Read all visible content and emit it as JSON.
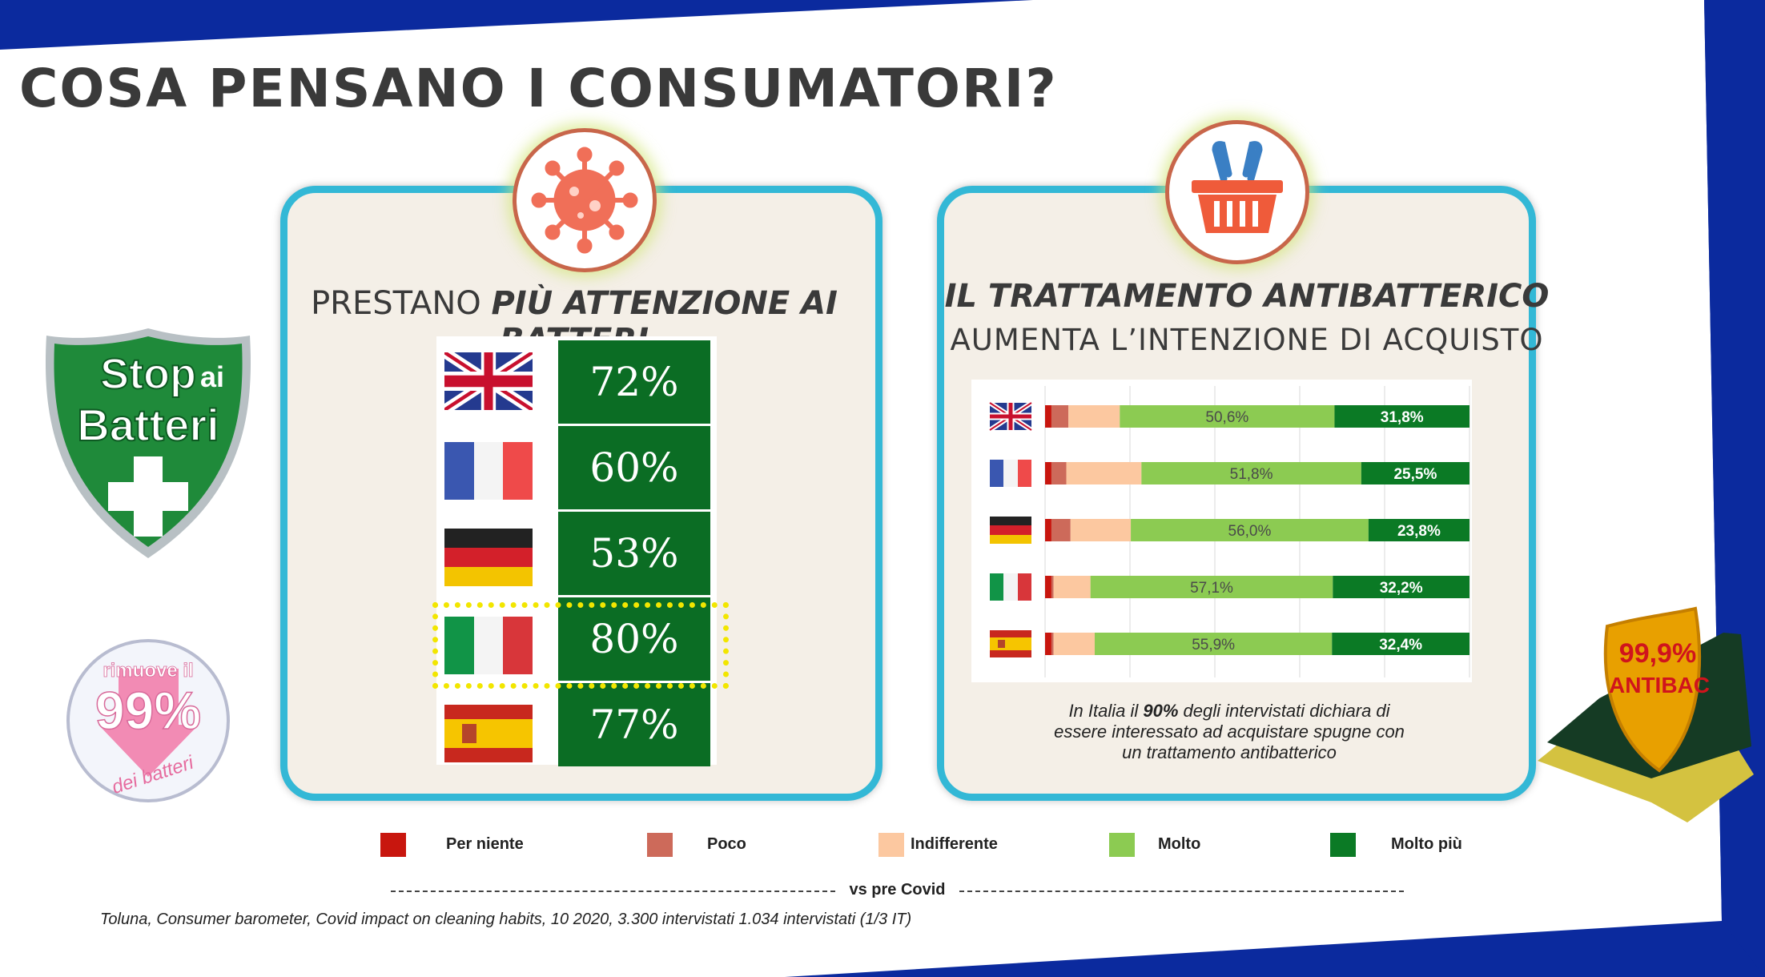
{
  "slide": {
    "title": "COSA PENSANO I CONSUMATORI?",
    "colors": {
      "frame": "#0b2a9e",
      "panel_border": "#33b8d6",
      "panel_bg": "#f4efe7",
      "dark_green": "#0b6d24"
    }
  },
  "badges": {
    "stop_line1": "Stop",
    "stop_line2": "ai",
    "stop_line3": "Batteri",
    "rimuove_line1": "rimuove il",
    "rimuove_line2": "99%",
    "rimuove_line3": "dei batteri",
    "antibac_line1": "99,9%",
    "antibac_line2": "ANTIBAC"
  },
  "left_panel": {
    "title_plain": "PRESTANO ",
    "title_italic": "PIÙ ATTENZIONE AI BATTERI",
    "icon": "virus-icon",
    "highlight_country": "Italia"
  },
  "right_panel": {
    "title_line1": "IL TRATTAMENTO ANTIBATTERICO",
    "title_line2": "AUMENTA L’INTENZIONE DI ACQUISTO",
    "icon": "shopping-basket-icon",
    "note_pre": "In Italia il ",
    "note_bold": "90%",
    "note_post": " degli intervistati dichiara di",
    "note_line2": "essere interessato ad acquistare spugne con",
    "note_line3": "un trattamento antibatterico"
  },
  "legend": {
    "items": [
      {
        "label": "Per niente",
        "color": "#c8160e"
      },
      {
        "label": "Poco",
        "color": "#cd6a5a"
      },
      {
        "label": "Indifferente",
        "color": "#fcc8a0"
      },
      {
        "label": "Molto",
        "color": "#8ccb52"
      },
      {
        "label": "Molto più",
        "color": "#0b7a25"
      }
    ]
  },
  "footer": {
    "divider_text": "vs pre Covid",
    "source": "Toluna, Consumer barometer, Covid impact on cleaning habits, 10 2020, 3.300 intervistati  1.034 intervistati (1/3 IT)"
  },
  "chart_data": [
    {
      "type": "table",
      "title": "PRESTANO PIÙ ATTENZIONE AI BATTERI",
      "categories": [
        "Regno Unito",
        "Francia",
        "Germania",
        "Italia",
        "Spagna"
      ],
      "values": [
        72,
        60,
        53,
        80,
        77
      ],
      "labels": [
        "72%",
        "60%",
        "53%",
        "80%",
        "77%"
      ]
    },
    {
      "type": "bar",
      "orientation": "horizontal",
      "stacked": true,
      "title": "IL TRATTAMENTO ANTIBATTERICO AUMENTA L’INTENZIONE DI ACQUISTO",
      "categories": [
        "Regno Unito",
        "Francia",
        "Germania",
        "Italia",
        "Spagna"
      ],
      "xlim": [
        0,
        100
      ],
      "grid": true,
      "series": [
        {
          "name": "Per niente",
          "color": "#c8160e",
          "values": [
            1.5,
            1.5,
            1.5,
            1.5,
            1.5
          ]
        },
        {
          "name": "Poco",
          "color": "#cd6a5a",
          "values": [
            4.0,
            3.5,
            4.5,
            0.5,
            0.5
          ]
        },
        {
          "name": "Indifferente",
          "color": "#fcc8a0",
          "values": [
            12.1,
            17.7,
            14.2,
            8.7,
            9.7
          ]
        },
        {
          "name": "Molto",
          "color": "#8ccb52",
          "values": [
            50.6,
            51.8,
            56.0,
            57.1,
            55.9
          ],
          "labels": [
            "50,6%",
            "51,8%",
            "56,0%",
            "57,1%",
            "55,9%"
          ]
        },
        {
          "name": "Molto più",
          "color": "#0b7a25",
          "values": [
            31.8,
            25.5,
            23.8,
            32.2,
            32.4
          ],
          "labels": [
            "31,8%",
            "25,5%",
            "23,8%",
            "32,2%",
            "32,4%"
          ]
        }
      ]
    }
  ]
}
